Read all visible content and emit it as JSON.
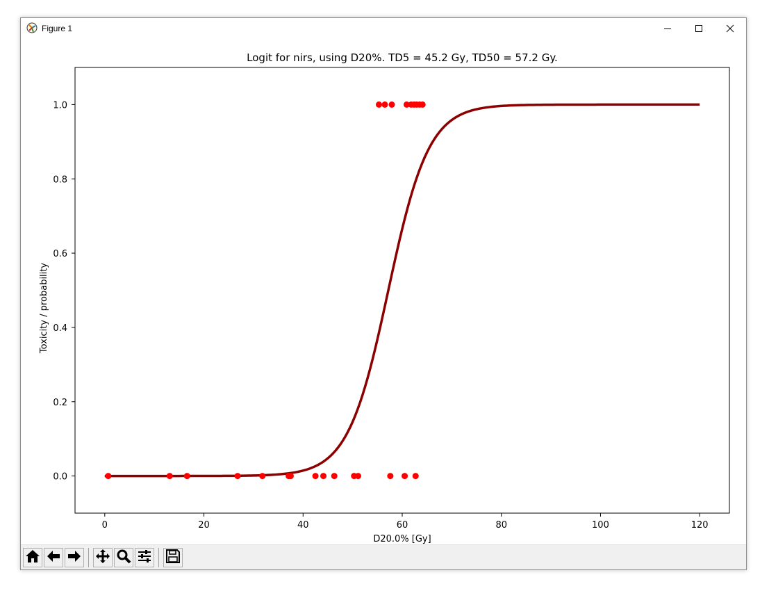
{
  "window": {
    "title": "Figure 1",
    "icons": {
      "app": "matplotlib-icon",
      "minimize": "minimize-icon",
      "maximize": "maximize-icon",
      "close": "close-icon"
    }
  },
  "toolbar": {
    "buttons": [
      {
        "icon": "home-icon"
      },
      {
        "icon": "back-arrow-icon"
      },
      {
        "icon": "forward-arrow-icon"
      },
      {
        "icon": "pan-icon"
      },
      {
        "icon": "zoom-icon"
      },
      {
        "icon": "configure-subplots-icon"
      },
      {
        "icon": "save-icon"
      }
    ]
  },
  "chart_data": {
    "type": "line",
    "title": "Logit for nirs, using D20%. TD5 = 45.2 Gy, TD50 = 57.2 Gy.",
    "xlabel": "D20.0% [Gy]",
    "ylabel": "Toxicity / probability",
    "xlim": [
      -6,
      126
    ],
    "ylim": [
      -0.1,
      1.1
    ],
    "xticks": [
      0,
      20,
      40,
      60,
      80,
      100,
      120
    ],
    "xtick_labels": [
      "0",
      "20",
      "40",
      "60",
      "80",
      "100",
      "120"
    ],
    "yticks": [
      0.0,
      0.2,
      0.4,
      0.6,
      0.8,
      1.0
    ],
    "ytick_labels": [
      "0.0",
      "0.2",
      "0.4",
      "0.6",
      "0.8",
      "1.0"
    ],
    "grid": false,
    "curve": {
      "color": "#8b0000",
      "model": "logistic",
      "td50": 57.2,
      "td5": 45.2,
      "x_range": [
        0,
        120
      ]
    },
    "points": {
      "color": "#ff0000",
      "toxicity_0": [
        0.7,
        13.1,
        16.6,
        26.8,
        31.8,
        37.1,
        37.5,
        42.5,
        44.1,
        46.3,
        50.3,
        51.1,
        57.6,
        60.5,
        62.7
      ],
      "toxicity_1": [
        55.3,
        56.5,
        57.9,
        60.9,
        61.8,
        62.4,
        62.9,
        63.5,
        64.1
      ]
    }
  }
}
